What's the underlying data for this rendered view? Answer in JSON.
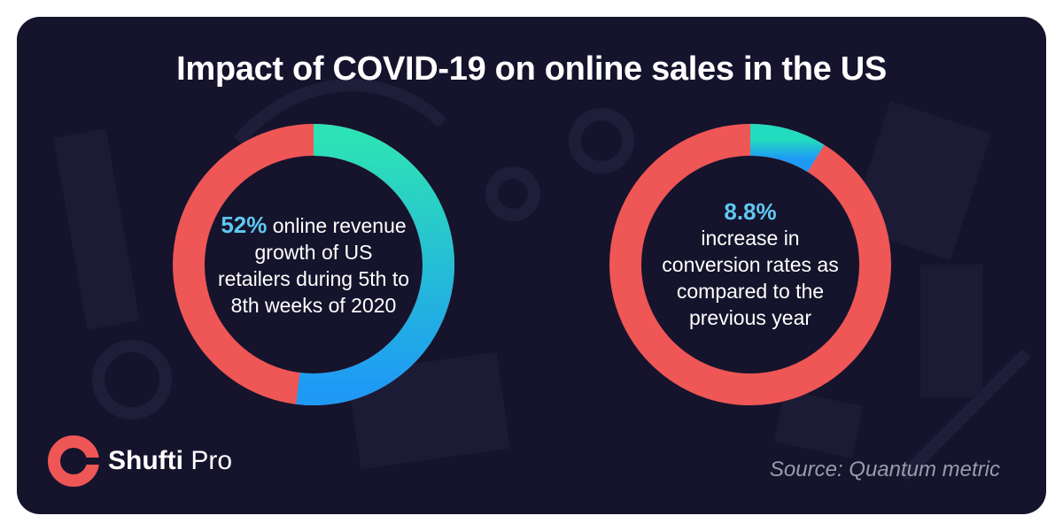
{
  "title": "Impact of COVID-19 on online sales in the US",
  "chart_data": [
    {
      "type": "pie",
      "style": "donut",
      "value_percent": 52,
      "value_label": "52%",
      "text": "online revenue growth of US retailers during 5th to 8th weeks of 2020",
      "colors": {
        "highlight_start": "#2de2b5",
        "highlight_end": "#1e9af5",
        "rest": "#ef5656",
        "value_text": "#5ec8f2"
      }
    },
    {
      "type": "pie",
      "style": "donut",
      "value_percent": 8.8,
      "value_label": "8.8%",
      "text": "increase in conversion rates as compared to the previous year",
      "colors": {
        "highlight_start": "#23dcc0",
        "highlight_end": "#1e9af5",
        "rest": "#ef5656",
        "value_text": "#5ec8f2"
      }
    }
  ],
  "logo": {
    "name_bold": "Shufti",
    "name_light": " Pro",
    "mark_color": "#ef5656"
  },
  "source": "Source: Quantum metric",
  "colors": {
    "background": "#15142c",
    "text": "#ffffff",
    "source_text": "#9a9aab"
  }
}
